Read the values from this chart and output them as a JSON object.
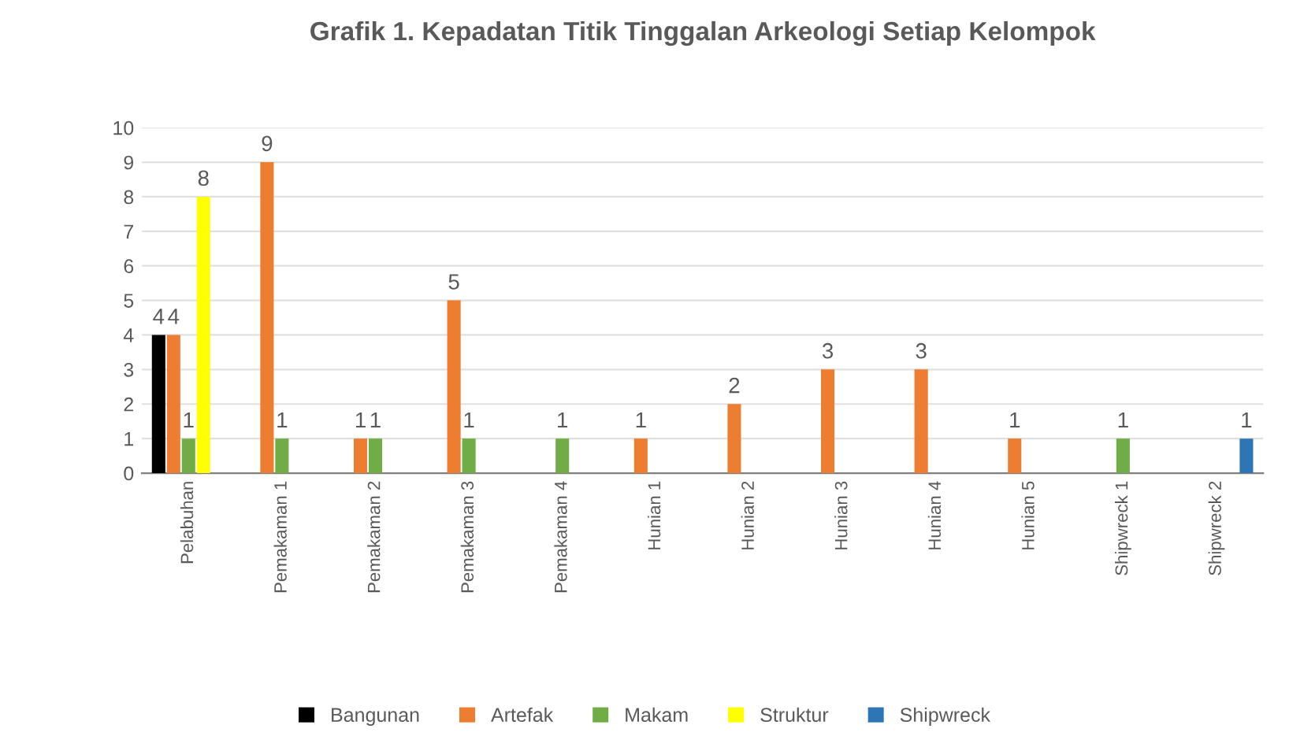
{
  "chart_data": {
    "type": "bar",
    "title": "Grafik 1. Kepadatan Titik Tinggalan Arkeologi Setiap Kelompok",
    "categories": [
      "Pelabuhan",
      "Pemakaman 1",
      "Pemakaman 2",
      "Pemakaman 3",
      "Pemakaman 4",
      "Hunian 1",
      "Hunian 2",
      "Hunian 3",
      "Hunian 4",
      "Hunian 5",
      "Shipwreck 1",
      "Shipwreck 2"
    ],
    "series": [
      {
        "name": "Bangunan",
        "color": "#000000",
        "values": [
          4,
          null,
          null,
          null,
          null,
          null,
          null,
          null,
          null,
          null,
          null,
          null
        ]
      },
      {
        "name": "Artefak",
        "color": "#ed7d31",
        "values": [
          4,
          9,
          1,
          5,
          null,
          1,
          2,
          3,
          3,
          1,
          null,
          null
        ]
      },
      {
        "name": "Makam",
        "color": "#70ad47",
        "values": [
          1,
          1,
          1,
          1,
          1,
          null,
          null,
          null,
          null,
          null,
          1,
          null
        ]
      },
      {
        "name": "Struktur",
        "color": "#ffff00",
        "values": [
          8,
          null,
          null,
          null,
          null,
          null,
          null,
          null,
          null,
          null,
          null,
          null
        ]
      },
      {
        "name": "Shipwreck",
        "color": "#2e75b6",
        "values": [
          null,
          null,
          null,
          null,
          null,
          null,
          null,
          null,
          null,
          null,
          null,
          1
        ]
      }
    ],
    "ylim": [
      0,
      10
    ],
    "yticks": [
      0,
      1,
      2,
      3,
      4,
      5,
      6,
      7,
      8,
      9,
      10
    ],
    "grid": "y",
    "legend": "bottom",
    "data_labels": true
  }
}
